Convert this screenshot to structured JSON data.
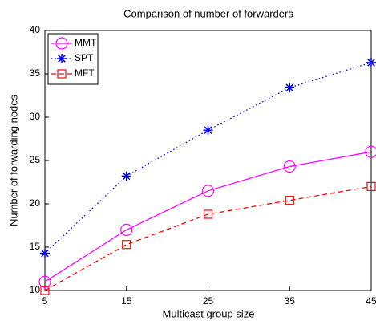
{
  "chart_data": {
    "type": "line",
    "title": "Comparison of number of forwarders",
    "xlabel": "Multicast group size",
    "ylabel": "Number of forwarding nodes",
    "x": [
      5,
      15,
      25,
      35,
      45
    ],
    "series": [
      {
        "name": "MMT",
        "color": "#ff00ff",
        "linestyle": "solid",
        "marker": "circle",
        "values": [
          11.0,
          17.0,
          21.5,
          24.3,
          26.0
        ]
      },
      {
        "name": "SPT",
        "color": "#0000ff",
        "linestyle": "dotted",
        "marker": "asterisk",
        "values": [
          14.3,
          23.2,
          28.5,
          33.4,
          36.3
        ]
      },
      {
        "name": "MFT",
        "color": "#ff0000",
        "linestyle": "dashed",
        "marker": "square",
        "values": [
          10.0,
          15.3,
          18.8,
          20.4,
          22.0
        ]
      }
    ],
    "xlim": [
      5,
      45
    ],
    "xticks": [
      5,
      15,
      25,
      35,
      45
    ],
    "ylim": [
      10,
      40
    ],
    "yticks": [
      10,
      15,
      20,
      25,
      30,
      35,
      40
    ],
    "legend": "upper left",
    "grid": false
  }
}
